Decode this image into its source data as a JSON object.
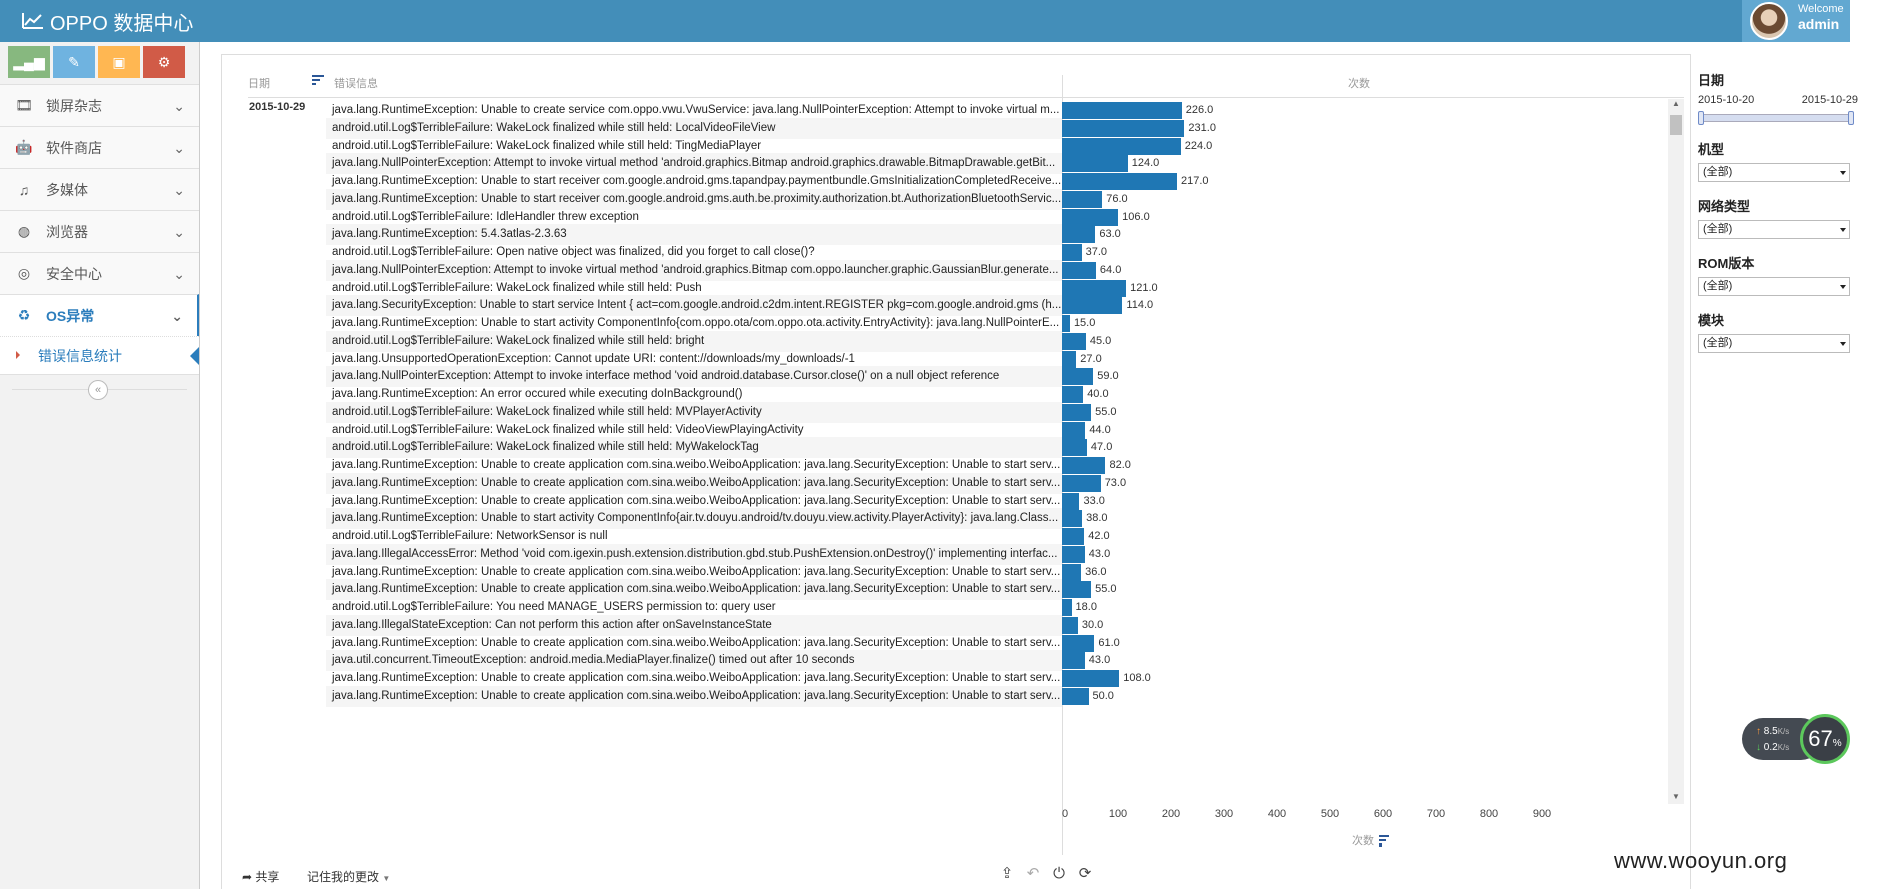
{
  "header": {
    "brand": "OPPO 数据中心",
    "welcome": "Welcome",
    "username": "admin"
  },
  "sidebar": {
    "shortcuts": [
      {
        "name": "chart-shortcut",
        "icon": "signal-icon",
        "color": "#87b87f"
      },
      {
        "name": "edit-shortcut",
        "icon": "pencil-icon",
        "color": "#6fb3e0"
      },
      {
        "name": "gift-shortcut",
        "icon": "gift-icon",
        "color": "#ffb752"
      },
      {
        "name": "settings-shortcut",
        "icon": "cogs-icon",
        "color": "#d15b47"
      }
    ],
    "items": [
      {
        "label": "锁屏杂志",
        "icon": "film-icon"
      },
      {
        "label": "软件商店",
        "icon": "android-icon"
      },
      {
        "label": "多媒体",
        "icon": "music-icon"
      },
      {
        "label": "浏览器",
        "icon": "globe-icon"
      },
      {
        "label": "安全中心",
        "icon": "lifebuoy-icon"
      },
      {
        "label": "OS异常",
        "icon": "recycle-icon"
      }
    ],
    "active_sub": "错误信息统计",
    "collapse_symbol": "«"
  },
  "table": {
    "headers": {
      "date": "日期",
      "message": "错误信息",
      "count": "次数"
    },
    "date_value": "2015-10-29",
    "rows": [
      {
        "msg": "java.lang.RuntimeException: Unable to create service com.oppo.vwu.VwuService: java.lang.NullPointerException: Attempt to invoke virtual m...",
        "count": 226.0
      },
      {
        "msg": "android.util.Log$TerribleFailure: WakeLock finalized while still held: LocalVideoFileView",
        "count": 231.0
      },
      {
        "msg": "android.util.Log$TerribleFailure: WakeLock finalized while still held: TingMediaPlayer",
        "count": 224.0
      },
      {
        "msg": "java.lang.NullPointerException: Attempt to invoke virtual method 'android.graphics.Bitmap android.graphics.drawable.BitmapDrawable.getBit...",
        "count": 124.0
      },
      {
        "msg": "java.lang.RuntimeException: Unable to start receiver com.google.android.gms.tapandpay.paymentbundle.GmsInitializationCompletedReceive...",
        "count": 217.0
      },
      {
        "msg": "java.lang.RuntimeException: Unable to start receiver com.google.android.gms.auth.be.proximity.authorization.bt.AuthorizationBluetoothServic...",
        "count": 76.0
      },
      {
        "msg": "android.util.Log$TerribleFailure: IdleHandler threw exception",
        "count": 106.0
      },
      {
        "msg": "java.lang.RuntimeException: 5.4.3atlas-2.3.63",
        "count": 63.0
      },
      {
        "msg": "android.util.Log$TerribleFailure: Open native object was finalized, did you forget to call close()?",
        "count": 37.0
      },
      {
        "msg": "java.lang.NullPointerException: Attempt to invoke virtual method 'android.graphics.Bitmap com.oppo.launcher.graphic.GaussianBlur.generate...",
        "count": 64.0
      },
      {
        "msg": "android.util.Log$TerribleFailure: WakeLock finalized while still held: Push",
        "count": 121.0
      },
      {
        "msg": "java.lang.SecurityException: Unable to start service Intent { act=com.google.android.c2dm.intent.REGISTER pkg=com.google.android.gms (h...",
        "count": 114.0
      },
      {
        "msg": "java.lang.RuntimeException: Unable to start activity ComponentInfo{com.oppo.ota/com.oppo.ota.activity.EntryActivity}: java.lang.NullPointerE...",
        "count": 15.0
      },
      {
        "msg": "android.util.Log$TerribleFailure: WakeLock finalized while still held: bright",
        "count": 45.0
      },
      {
        "msg": "java.lang.UnsupportedOperationException: Cannot update URI: content://downloads/my_downloads/-1",
        "count": 27.0
      },
      {
        "msg": "java.lang.NullPointerException: Attempt to invoke interface method 'void android.database.Cursor.close()' on a null object reference",
        "count": 59.0
      },
      {
        "msg": "java.lang.RuntimeException: An error occured while executing doInBackground()",
        "count": 40.0
      },
      {
        "msg": "android.util.Log$TerribleFailure: WakeLock finalized while still held: MVPlayerActivity",
        "count": 55.0
      },
      {
        "msg": "android.util.Log$TerribleFailure: WakeLock finalized while still held: VideoViewPlayingActivity",
        "count": 44.0
      },
      {
        "msg": "android.util.Log$TerribleFailure: WakeLock finalized while still held: MyWakelockTag",
        "count": 47.0
      },
      {
        "msg": "java.lang.RuntimeException: Unable to create application com.sina.weibo.WeiboApplication: java.lang.SecurityException: Unable to start serv...",
        "count": 82.0
      },
      {
        "msg": "java.lang.RuntimeException: Unable to create application com.sina.weibo.WeiboApplication: java.lang.SecurityException: Unable to start serv...",
        "count": 73.0
      },
      {
        "msg": "java.lang.RuntimeException: Unable to create application com.sina.weibo.WeiboApplication: java.lang.SecurityException: Unable to start serv...",
        "count": 33.0
      },
      {
        "msg": "java.lang.RuntimeException: Unable to start activity ComponentInfo{air.tv.douyu.android/tv.douyu.view.activity.PlayerActivity}: java.lang.Class...",
        "count": 38.0
      },
      {
        "msg": "android.util.Log$TerribleFailure: NetworkSensor is null",
        "count": 42.0
      },
      {
        "msg": "java.lang.IllegalAccessError: Method 'void com.igexin.push.extension.distribution.gbd.stub.PushExtension.onDestroy()' implementing interfac...",
        "count": 43.0
      },
      {
        "msg": "java.lang.RuntimeException: Unable to create application com.sina.weibo.WeiboApplication: java.lang.SecurityException: Unable to start serv...",
        "count": 36.0
      },
      {
        "msg": "java.lang.RuntimeException: Unable to create application com.sina.weibo.WeiboApplication: java.lang.SecurityException: Unable to start serv...",
        "count": 55.0
      },
      {
        "msg": "android.util.Log$TerribleFailure: You need MANAGE_USERS permission to: query user",
        "count": 18.0
      },
      {
        "msg": "java.lang.IllegalStateException: Can not perform this action after onSaveInstanceState",
        "count": 30.0
      },
      {
        "msg": "java.lang.RuntimeException: Unable to create application com.sina.weibo.WeiboApplication: java.lang.SecurityException: Unable to start serv...",
        "count": 61.0
      },
      {
        "msg": "java.util.concurrent.TimeoutException: android.media.MediaPlayer.finalize() timed out after 10 seconds",
        "count": 43.0
      },
      {
        "msg": "java.lang.RuntimeException: Unable to create application com.sina.weibo.WeiboApplication: java.lang.SecurityException: Unable to start serv...",
        "count": 108.0
      },
      {
        "msg": "java.lang.RuntimeException: Unable to create application com.sina.weibo.WeiboApplication: java.lang.SecurityException: Unable to start serv...",
        "count": 50.0
      }
    ],
    "axis": {
      "ticks": [
        0,
        100,
        200,
        300,
        400,
        500,
        600,
        700,
        800,
        900
      ],
      "max": 1000,
      "title": "次数"
    },
    "bar_color": "#1f77b4"
  },
  "footer": {
    "share": "共享",
    "remember": "记住我的更改"
  },
  "filters": {
    "date_label": "日期",
    "date_start": "2015-10-20",
    "date_end": "2015-10-29",
    "model_label": "机型",
    "model_value": "(全部)",
    "network_label": "网络类型",
    "network_value": "(全部)",
    "rom_label": "ROM版本",
    "rom_value": "(全部)",
    "module_label": "模块",
    "module_value": "(全部)"
  },
  "net_widget": {
    "up": "8.5",
    "down": "0.2",
    "unit": "K/s",
    "percent": "67",
    "percent_sign": "%"
  },
  "watermark": "www.wooyun.org"
}
